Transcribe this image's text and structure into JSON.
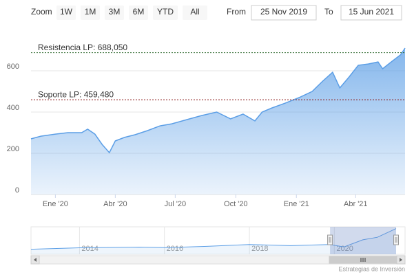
{
  "chart_data": {
    "type": "area",
    "range_selector": {
      "label": "Zoom",
      "buttons": [
        "1W",
        "1M",
        "3M",
        "6M",
        "YTD",
        "All"
      ],
      "from_label": "From",
      "from": "25 Nov 2019",
      "to_label": "To",
      "to": "15 Jun 2021"
    },
    "x": [
      "2019-11-25",
      "2019-12-10",
      "2020-01-01",
      "2020-01-20",
      "2020-02-10",
      "2020-02-19",
      "2020-03-01",
      "2020-03-12",
      "2020-03-23",
      "2020-04-01",
      "2020-04-15",
      "2020-05-01",
      "2020-05-20",
      "2020-06-08",
      "2020-06-26",
      "2020-07-15",
      "2020-08-10",
      "2020-09-02",
      "2020-09-23",
      "2020-10-12",
      "2020-10-30",
      "2020-11-10",
      "2020-11-25",
      "2020-12-15",
      "2021-01-05",
      "2021-01-25",
      "2021-02-10",
      "2021-02-25",
      "2021-03-08",
      "2021-03-22",
      "2021-04-05",
      "2021-04-20",
      "2021-05-05",
      "2021-05-12",
      "2021-05-25",
      "2021-06-08",
      "2021-06-15"
    ],
    "series": [
      {
        "color": "#5b9ee6",
        "values": [
          270,
          283,
          293,
          300,
          300,
          317,
          293,
          243,
          203,
          260,
          277,
          290,
          310,
          333,
          343,
          360,
          383,
          400,
          367,
          390,
          357,
          400,
          420,
          443,
          470,
          500,
          550,
          593,
          517,
          570,
          627,
          633,
          643,
          610,
          643,
          677,
          710
        ]
      }
    ],
    "xlim": [
      "2019-11-25",
      "2021-06-15"
    ],
    "xticks": [
      {
        "value": "2020-01-01",
        "label": "Ene '20"
      },
      {
        "value": "2020-04-01",
        "label": "Abr '20"
      },
      {
        "value": "2020-07-01",
        "label": "Jul '20"
      },
      {
        "value": "2020-10-01",
        "label": "Oct '20"
      },
      {
        "value": "2021-01-01",
        "label": "Ene '21"
      },
      {
        "value": "2021-04-01",
        "label": "Abr '21"
      }
    ],
    "ylim": [
      0,
      710
    ],
    "yticks": [
      0,
      200,
      400,
      600
    ],
    "grid": true,
    "plot_lines": [
      {
        "value": 688.05,
        "label": "Resistencia LP: 688,050",
        "color": "#2e6b2e"
      },
      {
        "value": 459.48,
        "label": "Soporte LP: 459,480",
        "color": "#8b1a1a"
      }
    ],
    "navigator": {
      "x": [
        "2012-11-10",
        "2014-01-01",
        "2015-06-01",
        "2016-02-01",
        "2017-01-01",
        "2018-01-01",
        "2018-12-20",
        "2019-11-25",
        "2020-03-23",
        "2020-09-02",
        "2021-01-05",
        "2021-06-15"
      ],
      "values": [
        140,
        180,
        200,
        185,
        220,
        270,
        240,
        270,
        203,
        400,
        470,
        710
      ],
      "xlim": [
        "2012-11-10",
        "2021-06-15"
      ],
      "ylim": [
        0,
        720
      ],
      "xticks": [
        {
          "value": "2014-01-01",
          "label": "2014"
        },
        {
          "value": "2016-01-01",
          "label": "2016"
        },
        {
          "value": "2018-01-01",
          "label": "2018"
        },
        {
          "value": "2020-01-01",
          "label": "2020"
        }
      ]
    },
    "credit": "Estrategias de Inversión"
  }
}
